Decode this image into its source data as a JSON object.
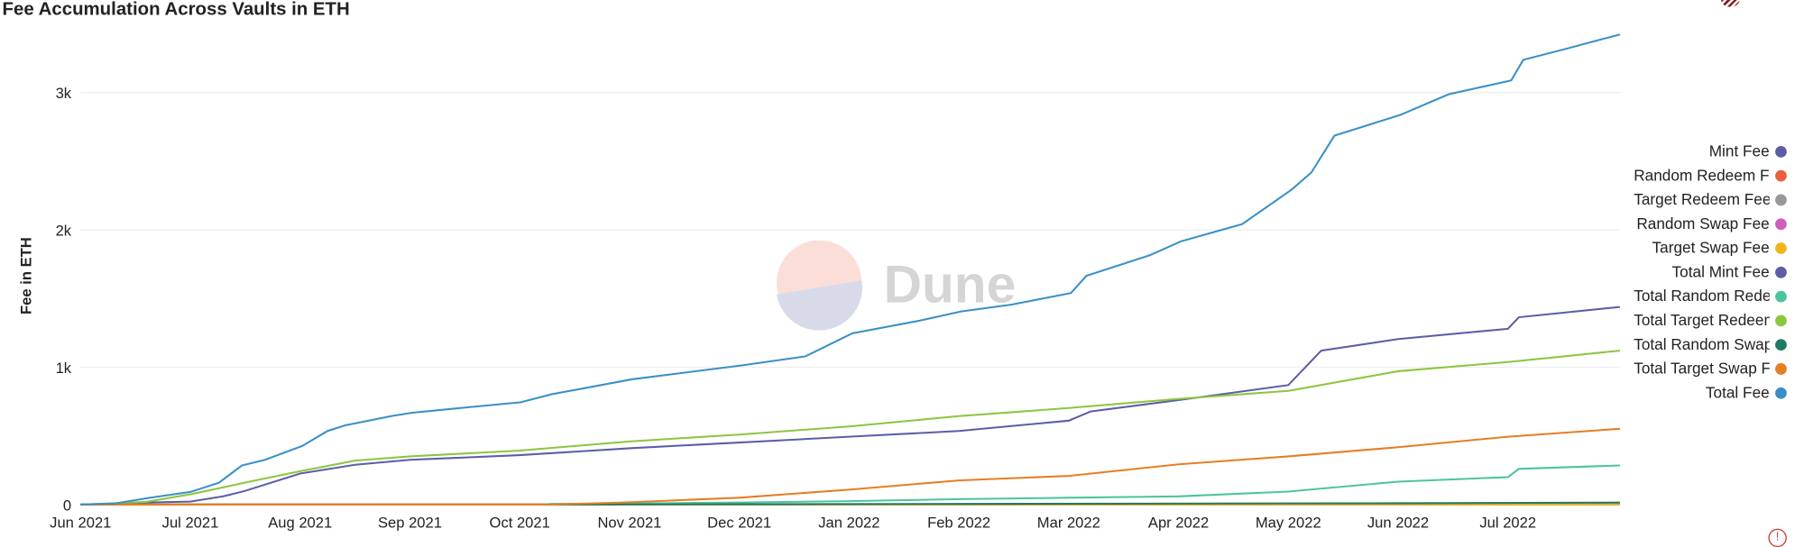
{
  "header": {
    "title": "Fee Accumulation Across Vaults in ETH"
  },
  "watermark": "Dune",
  "chart_data": {
    "type": "line",
    "title": "Fee Accumulation Across Vaults in ETH",
    "xlabel": "",
    "ylabel": "Fee in ETH",
    "x_ticks": [
      "Jun 2021",
      "Jul 2021",
      "Aug 2021",
      "Sep 2021",
      "Oct 2021",
      "Nov 2021",
      "Dec 2021",
      "Jan 2022",
      "Feb 2022",
      "Mar 2022",
      "Apr 2022",
      "May 2022",
      "Jun 2022",
      "Jul 2022"
    ],
    "x_unit": "months since Jun 2021",
    "xlim": [
      0,
      14.02
    ],
    "y_ticks": [
      {
        "v": 0,
        "label": "0"
      },
      {
        "v": 1000,
        "label": "1k"
      },
      {
        "v": 2000,
        "label": "2k"
      },
      {
        "v": 3000,
        "label": "3k"
      }
    ],
    "ylim": [
      0,
      3650
    ],
    "grid": true,
    "legend_position": "right",
    "series": [
      {
        "name": "Mint Fee",
        "color": "#5b5ea6",
        "points": [
          [
            0,
            0
          ],
          [
            14.02,
            3
          ]
        ]
      },
      {
        "name": "Random Redeem Fee",
        "color": "#e8603c",
        "points": [
          [
            0,
            0
          ],
          [
            14.02,
            0
          ]
        ]
      },
      {
        "name": "Target Redeem Fee",
        "color": "#999999",
        "points": [
          [
            0,
            0
          ],
          [
            14.02,
            1
          ]
        ]
      },
      {
        "name": "Random Swap Fee",
        "color": "#cc5fb8",
        "points": [
          [
            0,
            0
          ],
          [
            14.02,
            0
          ]
        ]
      },
      {
        "name": "Target Swap Fee",
        "color": "#f2b51d",
        "points": [
          [
            0,
            0
          ],
          [
            14.02,
            1
          ]
        ]
      },
      {
        "name": "Total Mint Fee",
        "color": "#5b5ea6",
        "points": [
          [
            0,
            0
          ],
          [
            0.6,
            15
          ],
          [
            1.0,
            22
          ],
          [
            1.3,
            60
          ],
          [
            1.5,
            100
          ],
          [
            2.0,
            226
          ],
          [
            2.5,
            290
          ],
          [
            3.0,
            326
          ],
          [
            4.0,
            360
          ],
          [
            5.0,
            410
          ],
          [
            6.0,
            452
          ],
          [
            7.0,
            494
          ],
          [
            8.0,
            536
          ],
          [
            9.0,
            611
          ],
          [
            9.2,
            678
          ],
          [
            10.0,
            761
          ],
          [
            11.0,
            870
          ],
          [
            11.3,
            1121
          ],
          [
            12.0,
            1205
          ],
          [
            13.0,
            1280
          ],
          [
            13.1,
            1364
          ],
          [
            14.02,
            1439
          ]
        ]
      },
      {
        "name": "Total Random Redeem Fee",
        "color": "#4cc4a0",
        "points": [
          [
            0,
            0
          ],
          [
            4.2,
            0
          ],
          [
            4.3,
            5
          ],
          [
            5,
            8
          ],
          [
            6,
            15
          ],
          [
            7,
            25
          ],
          [
            8,
            40
          ],
          [
            9,
            50
          ],
          [
            10,
            60
          ],
          [
            11,
            95
          ],
          [
            12,
            167
          ],
          [
            13,
            200
          ],
          [
            13.1,
            260
          ],
          [
            14.02,
            285
          ]
        ]
      },
      {
        "name": "Total Target Redeem Fee",
        "color": "#8cc63f",
        "points": [
          [
            0,
            0
          ],
          [
            0.6,
            20
          ],
          [
            1.0,
            75
          ],
          [
            1.5,
            160
          ],
          [
            2.0,
            243
          ],
          [
            2.5,
            320
          ],
          [
            3.0,
            351
          ],
          [
            4.0,
            393
          ],
          [
            5.0,
            460
          ],
          [
            6.0,
            510
          ],
          [
            7.0,
            569
          ],
          [
            8.0,
            644
          ],
          [
            9.0,
            703
          ],
          [
            10.0,
            770
          ],
          [
            11.0,
            828
          ],
          [
            12.0,
            971
          ],
          [
            13.0,
            1038
          ],
          [
            14.02,
            1121
          ]
        ]
      },
      {
        "name": "Total Random Swap Fee",
        "color": "#1f7a63",
        "points": [
          [
            0,
            0
          ],
          [
            4,
            0
          ],
          [
            8,
            5
          ],
          [
            12,
            10
          ],
          [
            14.02,
            15
          ]
        ]
      },
      {
        "name": "Total Target Swap Fee",
        "color": "#e67e22",
        "points": [
          [
            0,
            0
          ],
          [
            4.3,
            0
          ],
          [
            5.0,
            17
          ],
          [
            6.0,
            50
          ],
          [
            7.0,
            109
          ],
          [
            8.0,
            176
          ],
          [
            9.0,
            209
          ],
          [
            10.0,
            293
          ],
          [
            11.0,
            351
          ],
          [
            12.0,
            418
          ],
          [
            13.0,
            494
          ],
          [
            14.02,
            552
          ]
        ]
      },
      {
        "name": "Total Fee",
        "color": "#3a8fc7",
        "points": [
          [
            0,
            0
          ],
          [
            0.31,
            8
          ],
          [
            0.63,
            50
          ],
          [
            1.0,
            92
          ],
          [
            1.26,
            159
          ],
          [
            1.47,
            285
          ],
          [
            1.68,
            326
          ],
          [
            2.02,
            427
          ],
          [
            2.25,
            536
          ],
          [
            2.41,
            577
          ],
          [
            2.83,
            644
          ],
          [
            3.02,
            669
          ],
          [
            3.46,
            703
          ],
          [
            4.01,
            745
          ],
          [
            4.29,
            803
          ],
          [
            5.02,
            912
          ],
          [
            6.02,
            1013
          ],
          [
            6.6,
            1079
          ],
          [
            7.03,
            1247
          ],
          [
            7.64,
            1339
          ],
          [
            8.02,
            1406
          ],
          [
            8.48,
            1456
          ],
          [
            9.02,
            1540
          ],
          [
            9.16,
            1665
          ],
          [
            9.74,
            1816
          ],
          [
            10.02,
            1916
          ],
          [
            10.58,
            2042
          ],
          [
            11.03,
            2293
          ],
          [
            11.21,
            2418
          ],
          [
            11.42,
            2686
          ],
          [
            12.02,
            2837
          ],
          [
            12.46,
            2987
          ],
          [
            13.03,
            3088
          ],
          [
            13.14,
            3238
          ],
          [
            13.51,
            3314
          ],
          [
            14.02,
            3423
          ]
        ]
      }
    ]
  }
}
